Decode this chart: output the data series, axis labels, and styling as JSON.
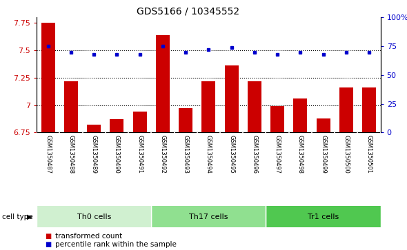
{
  "title": "GDS5166 / 10345552",
  "samples": [
    "GSM1350487",
    "GSM1350488",
    "GSM1350489",
    "GSM1350490",
    "GSM1350491",
    "GSM1350492",
    "GSM1350493",
    "GSM1350494",
    "GSM1350495",
    "GSM1350496",
    "GSM1350497",
    "GSM1350498",
    "GSM1350499",
    "GSM1350500",
    "GSM1350501"
  ],
  "red_values": [
    7.75,
    7.22,
    6.82,
    6.87,
    6.94,
    7.64,
    6.97,
    7.22,
    7.36,
    7.22,
    6.99,
    7.06,
    6.88,
    7.16,
    7.16
  ],
  "blue_values": [
    75,
    70,
    68,
    68,
    68,
    75,
    70,
    72,
    74,
    70,
    68,
    70,
    68,
    70,
    70
  ],
  "cell_types": [
    {
      "label": "Th0 cells",
      "start": 0,
      "end": 5,
      "color": "#d0f0d0"
    },
    {
      "label": "Th17 cells",
      "start": 5,
      "end": 10,
      "color": "#90e090"
    },
    {
      "label": "Tr1 cells",
      "start": 10,
      "end": 15,
      "color": "#50c850"
    }
  ],
  "ylim_left": [
    6.75,
    7.8
  ],
  "ylim_right": [
    0,
    100
  ],
  "yticks_left": [
    6.75,
    7.0,
    7.25,
    7.5,
    7.75
  ],
  "yticks_right": [
    0,
    25,
    50,
    75,
    100
  ],
  "ytick_labels_left": [
    "6.75",
    "7",
    "7.25",
    "7.5",
    "7.75"
  ],
  "ytick_labels_right": [
    "0",
    "25",
    "50",
    "75",
    "100%"
  ],
  "grid_lines": [
    7.0,
    7.25,
    7.5
  ],
  "bar_color": "#cc0000",
  "dot_color": "#0000cc",
  "plot_bg": "#ffffff",
  "label_bg": "#c8c8c8",
  "title_fontsize": 10,
  "tick_fontsize": 8,
  "label_fontsize": 6,
  "legend_items": [
    {
      "color": "#cc0000",
      "label": "transformed count"
    },
    {
      "color": "#0000cc",
      "label": "percentile rank within the sample"
    }
  ]
}
